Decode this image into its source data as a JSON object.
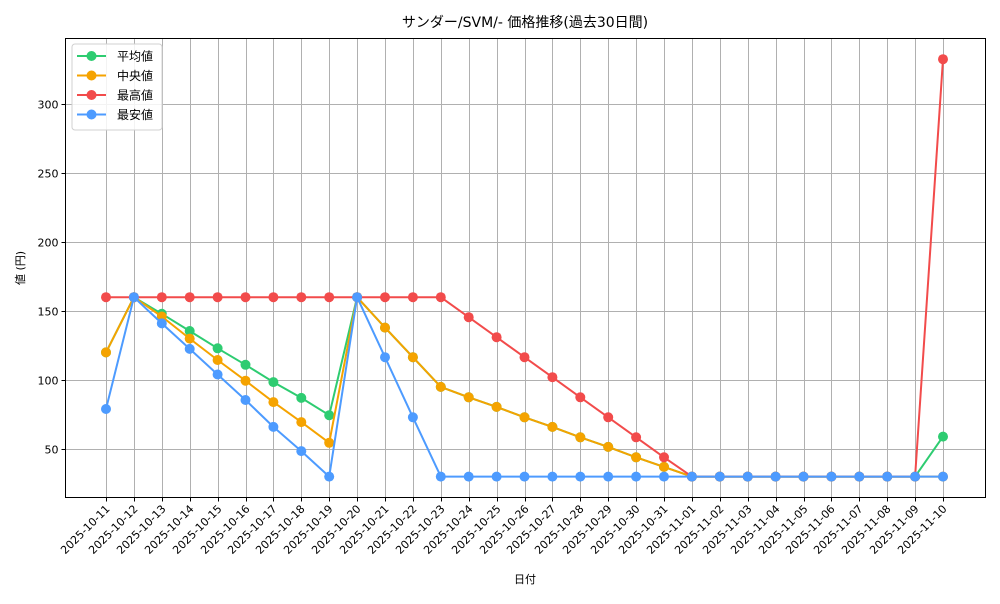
{
  "chart_data": {
    "type": "line",
    "title": "サンダー/SVM/- 価格推移(過去30日間)",
    "xlabel": "日付",
    "ylabel": "値 (円)",
    "ylim": [
      14.5,
      348
    ],
    "yticks": [
      50,
      100,
      150,
      200,
      250,
      300
    ],
    "grid": true,
    "legend_position": "upper left",
    "x": [
      "2025-10-11",
      "2025-10-12",
      "2025-10-13",
      "2025-10-14",
      "2025-10-15",
      "2025-10-16",
      "2025-10-17",
      "2025-10-18",
      "2025-10-19",
      "2025-10-20",
      "2025-10-21",
      "2025-10-22",
      "2025-10-23",
      "2025-10-24",
      "2025-10-25",
      "2025-10-26",
      "2025-10-27",
      "2025-10-28",
      "2025-10-29",
      "2025-10-30",
      "2025-10-31",
      "2025-11-01",
      "2025-11-02",
      "2025-11-03",
      "2025-11-04",
      "2025-11-05",
      "2025-11-06",
      "2025-11-07",
      "2025-11-08",
      "2025-11-09",
      "2025-11-10"
    ],
    "series": [
      {
        "name": "平均値",
        "color": "#2ecc71",
        "values": [
          120,
          160,
          148,
          135.5,
          123,
          111,
          98.5,
          87,
          74.5,
          160,
          138,
          116.5,
          95,
          87.5,
          80.5,
          73,
          66,
          58.5,
          51.5,
          44,
          37,
          30,
          30,
          30,
          30,
          30,
          30,
          30,
          30,
          30,
          59
        ]
      },
      {
        "name": "中央値",
        "color": "#f5a300",
        "values": [
          120,
          160,
          146,
          130,
          114.5,
          99.5,
          84,
          69.5,
          54.5,
          160,
          138,
          116.5,
          95,
          87.5,
          80.5,
          73,
          66,
          58.5,
          51.5,
          44,
          37,
          30,
          30,
          30,
          30,
          30,
          30,
          30,
          30,
          30,
          30
        ]
      },
      {
        "name": "最高値",
        "color": "#f24b4b",
        "values": [
          160,
          160,
          160,
          160,
          160,
          160,
          160,
          160,
          160,
          160,
          160,
          160,
          160,
          145.5,
          131,
          116.5,
          102,
          87.5,
          73,
          58.5,
          44,
          30,
          30,
          30,
          30,
          30,
          30,
          30,
          30,
          30,
          332.5
        ]
      },
      {
        "name": "最安値",
        "color": "#4d9bff",
        "values": [
          79,
          160,
          141,
          122.5,
          104,
          85.5,
          66,
          48.5,
          30,
          160,
          116.5,
          73,
          30,
          30,
          30,
          30,
          30,
          30,
          30,
          30,
          30,
          30,
          30,
          30,
          30,
          30,
          30,
          30,
          30,
          30,
          30
        ]
      }
    ]
  }
}
